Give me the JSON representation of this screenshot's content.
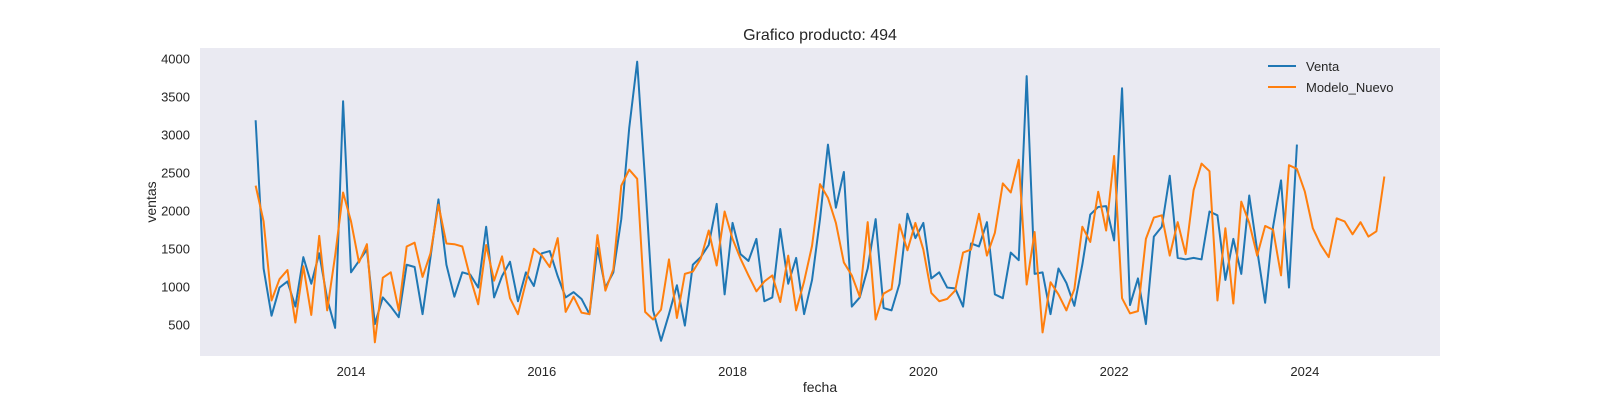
{
  "chart_data": {
    "type": "line",
    "title": "Grafico producto: 494",
    "xlabel": "fecha",
    "ylabel": "ventas",
    "x_ticks": [
      "2014",
      "2016",
      "2018",
      "2020",
      "2022",
      "2024"
    ],
    "y_ticks": [
      "500",
      "1000",
      "1500",
      "2000",
      "2500",
      "3000",
      "3500",
      "4000"
    ],
    "legend": [
      "Venta",
      "Modelo_Nuevo"
    ],
    "legend_position": "top-right",
    "background": "#eaeaf2",
    "grid": false,
    "xlim": [
      "2012-06",
      "2025-06"
    ],
    "ylim": [
      100,
      4150
    ],
    "x_start": "2013-01",
    "series": [
      {
        "name": "Venta",
        "color": "#1f77b4",
        "values": [
          3200,
          1250,
          630,
          1000,
          1080,
          750,
          1400,
          1050,
          1450,
          850,
          470,
          3450,
          1200,
          1350,
          1500,
          520,
          870,
          750,
          610,
          1300,
          1270,
          650,
          1400,
          2160,
          1300,
          880,
          1200,
          1170,
          1000,
          1800,
          870,
          1150,
          1340,
          820,
          1200,
          1020,
          1450,
          1480,
          1150,
          870,
          940,
          850,
          650,
          1520,
          1000,
          1200,
          1900,
          3100,
          3970,
          2400,
          700,
          300,
          650,
          1030,
          500,
          1300,
          1400,
          1560,
          2100,
          910,
          1850,
          1440,
          1350,
          1640,
          820,
          870,
          1770,
          1050,
          1390,
          650,
          1100,
          1900,
          2880,
          2050,
          2520,
          750,
          870,
          1250,
          1900,
          730,
          700,
          1050,
          1970,
          1650,
          1850,
          1120,
          1200,
          1000,
          990,
          750,
          1580,
          1540,
          1860,
          910,
          860,
          1460,
          1360,
          3780,
          1180,
          1200,
          650,
          1250,
          1060,
          760,
          1300,
          1960,
          2060,
          2070,
          1620,
          3620,
          770,
          1120,
          520,
          1670,
          1800,
          2470,
          1390,
          1370,
          1390,
          1370,
          2000,
          1950,
          1100,
          1640,
          1180,
          2210,
          1490,
          800,
          1800,
          2410,
          1000,
          2880
        ],
        "x_start": "2013-01"
      },
      {
        "name": "Modelo_Nuevo",
        "color": "#ff7f0e",
        "values": [
          2340,
          1870,
          830,
          1110,
          1230,
          540,
          1280,
          640,
          1680,
          700,
          1420,
          2250,
          1870,
          1330,
          1570,
          280,
          1130,
          1200,
          700,
          1540,
          1590,
          1140,
          1450,
          2090,
          1580,
          1570,
          1540,
          1130,
          780,
          1560,
          1090,
          1410,
          860,
          650,
          1070,
          1510,
          1420,
          1270,
          1650,
          680,
          880,
          670,
          650,
          1690,
          960,
          1240,
          2340,
          2550,
          2430,
          680,
          580,
          710,
          1370,
          600,
          1180,
          1210,
          1380,
          1750,
          1290,
          2000,
          1640,
          1380,
          1160,
          950,
          1080,
          1160,
          810,
          1420,
          700,
          1080,
          1550,
          2360,
          2180,
          1850,
          1330,
          1160,
          880,
          1860,
          580,
          920,
          980,
          1830,
          1490,
          1850,
          1500,
          930,
          820,
          850,
          960,
          1460,
          1500,
          1970,
          1420,
          1720,
          2370,
          2250,
          2680,
          1040,
          1730,
          410,
          1070,
          910,
          700,
          980,
          1800,
          1600,
          2260,
          1750,
          2730,
          860,
          660,
          690,
          1640,
          1920,
          1950,
          1420,
          1860,
          1440,
          2280,
          2630,
          2530,
          830,
          1780,
          790,
          2130,
          1850,
          1420,
          1810,
          1760,
          1160,
          2610,
          2560,
          2260,
          1780,
          1560,
          1400,
          1910,
          1870,
          1700,
          1860,
          1670,
          1740,
          2460
        ],
        "x_start": "2013-01"
      }
    ]
  }
}
